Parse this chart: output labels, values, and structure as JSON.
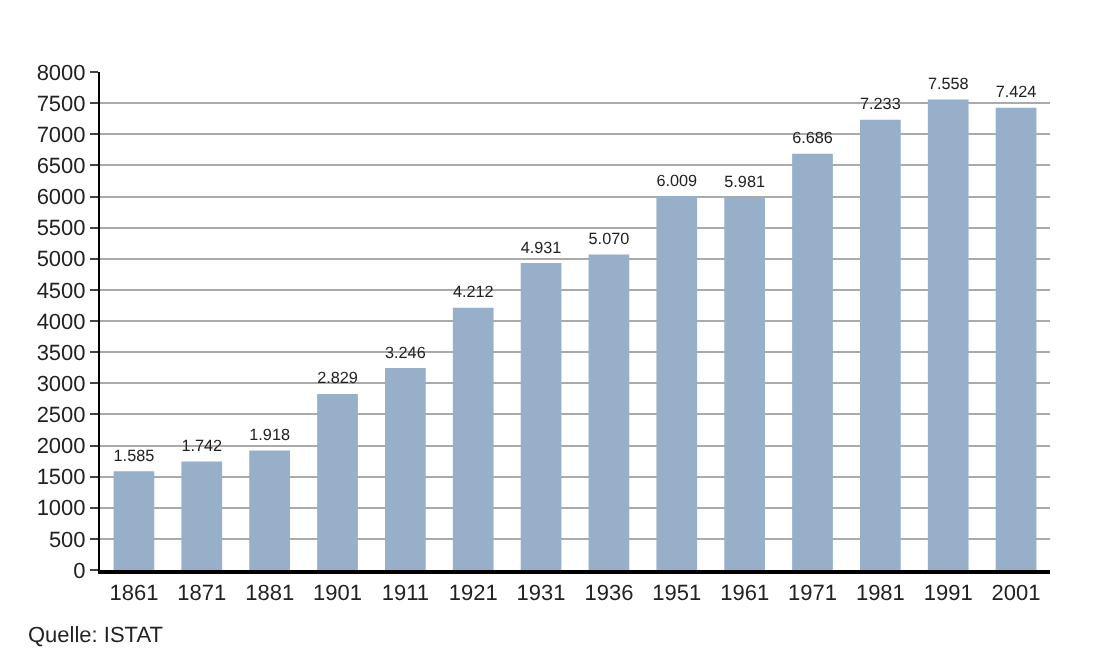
{
  "chart_data": {
    "type": "bar",
    "categories": [
      "1861",
      "1871",
      "1881",
      "1901",
      "1911",
      "1921",
      "1931",
      "1936",
      "1951",
      "1961",
      "1971",
      "1981",
      "1991",
      "2001"
    ],
    "values": [
      1585,
      1742,
      1918,
      2829,
      3246,
      4212,
      4931,
      5070,
      6009,
      5981,
      6686,
      7233,
      7558,
      7424
    ],
    "value_labels": [
      "1.585",
      "1.742",
      "1.918",
      "2.829",
      "3.246",
      "4.212",
      "4.931",
      "5.070",
      "6.009",
      "5.981",
      "6.686",
      "7.233",
      "7.558",
      "7.424"
    ],
    "color": "#97afc9",
    "ylim": [
      0,
      8000
    ],
    "yticks": [
      0,
      500,
      1000,
      1500,
      2000,
      2500,
      3000,
      3500,
      4000,
      4500,
      5000,
      5500,
      6000,
      6500,
      7000,
      7500,
      8000
    ],
    "grid": "y",
    "annotations": [
      "Quelle: ISTAT"
    ]
  }
}
